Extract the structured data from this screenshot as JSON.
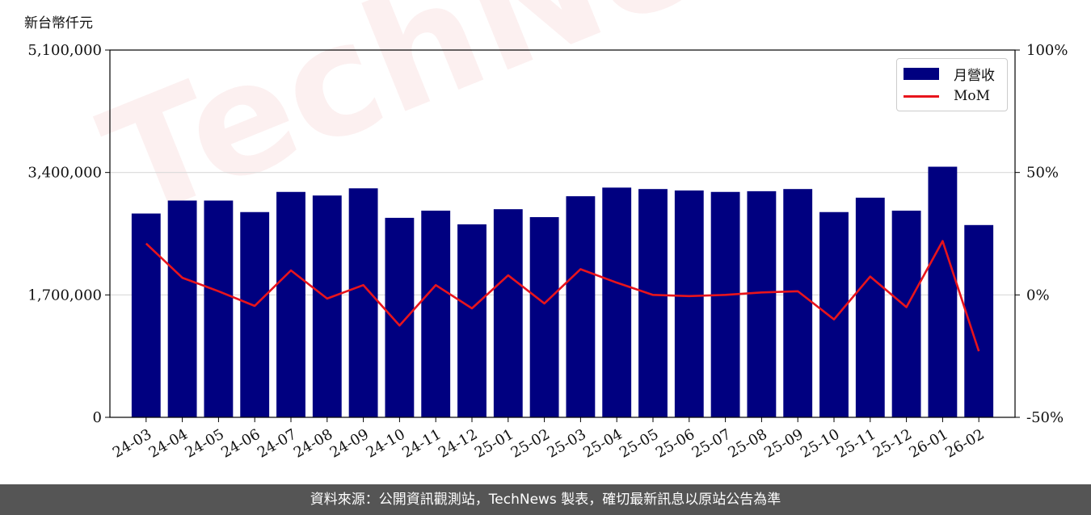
{
  "unit_label": "新台幣仟元",
  "footer": "資料來源：公開資訊觀測站，TechNews 製表，確切最新訊息以原站公告為準",
  "watermark": "TechNews",
  "colors": {
    "bar": "#000080",
    "line": "#e8141c",
    "grid": "#d9d9d9",
    "footer_bg": "#555555"
  },
  "chart_data": {
    "type": "bar",
    "categories": [
      "24-03",
      "24-04",
      "24-05",
      "24-06",
      "24-07",
      "24-08",
      "24-09",
      "24-10",
      "24-11",
      "24-12",
      "25-01",
      "25-02",
      "25-03",
      "25-04",
      "25-05",
      "25-06",
      "25-07",
      "25-08",
      "25-09",
      "25-10",
      "25-11",
      "25-12",
      "26-01",
      "26-02"
    ],
    "series": [
      {
        "name": "月營收",
        "type": "bar",
        "axis": "left",
        "values": [
          2830000,
          3010000,
          3010000,
          2850000,
          3130000,
          3080000,
          3180000,
          2770000,
          2870000,
          2680000,
          2890000,
          2780000,
          3070000,
          3190000,
          3170000,
          3150000,
          3130000,
          3140000,
          3170000,
          2850000,
          3050000,
          2870000,
          3480000,
          2670000
        ]
      },
      {
        "name": "MoM",
        "type": "line",
        "axis": "right",
        "values": [
          21,
          7,
          1.5,
          -4.5,
          10,
          -1.5,
          4,
          -12.5,
          4,
          -5.5,
          8,
          -3.5,
          10.5,
          5,
          0,
          -0.5,
          0,
          1,
          1.5,
          -10,
          7.5,
          -5,
          22,
          -23
        ]
      }
    ],
    "ylim": [
      0,
      5100000
    ],
    "yticks": [
      "0",
      "1,700,000",
      "3,400,000",
      "5,100,000"
    ],
    "ytick_values": [
      0,
      1700000,
      3400000,
      5100000
    ],
    "y2lim": [
      -50,
      100
    ],
    "y2ticks": [
      "-50%",
      "0%",
      "50%",
      "100%"
    ],
    "y2tick_values": [
      -50,
      0,
      50,
      100
    ],
    "grid": true,
    "legend": "top-right"
  }
}
